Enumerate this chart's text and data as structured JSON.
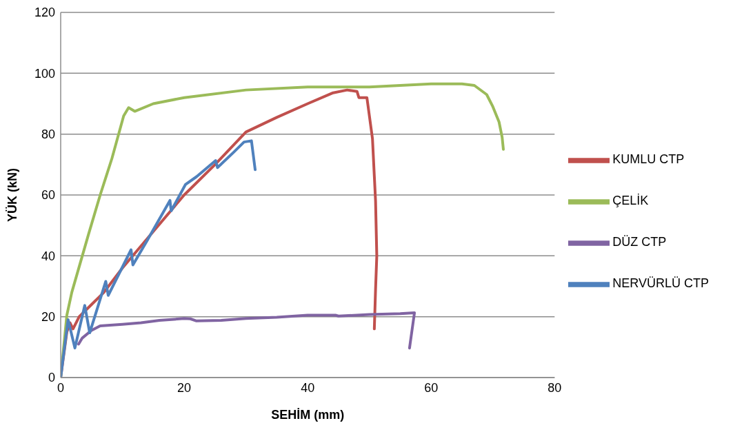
{
  "chart_data": {
    "type": "line",
    "xlabel": "SEHİM (mm)",
    "ylabel": "YÜK (kN)",
    "xlim": [
      0,
      80
    ],
    "xticks": [
      0,
      20,
      40,
      60,
      80
    ],
    "ylim": [
      0,
      120
    ],
    "yticks": [
      0,
      20,
      40,
      60,
      80,
      100,
      120
    ],
    "grid": "y",
    "legend": "right",
    "marker": "none",
    "line_style": "solid",
    "series": [
      {
        "name": "KUMLU CTP",
        "color": "#c0504d",
        "x": [
          0,
          1,
          1.5,
          2,
          3,
          5,
          7,
          10,
          15,
          20,
          25,
          30,
          35,
          40,
          44,
          46.4,
          48,
          48.3,
          49.6,
          50.5,
          51,
          51.2,
          51,
          50.8
        ],
        "values": [
          0,
          15,
          18,
          16,
          20,
          24,
          28,
          36,
          48,
          60,
          70,
          80.7,
          85.5,
          90,
          93.5,
          94.5,
          94,
          92,
          92,
          78.5,
          58,
          40,
          29,
          16
        ]
      },
      {
        "name": "ÇELİK",
        "color": "#9bbb59",
        "x": [
          0,
          1,
          1.8,
          4.5,
          6.4,
          8.3,
          10.2,
          11,
          12,
          15,
          20,
          30,
          40,
          50,
          55,
          60,
          65,
          67,
          69,
          70,
          71,
          71.5,
          71.7
        ],
        "values": [
          0,
          20.5,
          28,
          47,
          60,
          72,
          86,
          88.7,
          87.5,
          90,
          92,
          94.5,
          95.5,
          95.5,
          96,
          96.5,
          96.5,
          96,
          93,
          89,
          84,
          79,
          75
        ]
      },
      {
        "name": "DÜZ CTP",
        "color": "#8064a2",
        "x": [
          2.9,
          3.5,
          5,
          6.4,
          10,
          13,
          16,
          20,
          21,
          22,
          26,
          30,
          35,
          40,
          44.5,
          45,
          50,
          55,
          57.3,
          56.5
        ],
        "values": [
          11,
          13,
          15.5,
          17,
          17.5,
          18,
          18.8,
          19.4,
          19.3,
          18.6,
          18.8,
          19.4,
          19.8,
          20.5,
          20.5,
          20.2,
          20.7,
          21,
          21.3,
          9.7
        ]
      },
      {
        "name": "NERVÜRLÜ CTP",
        "color": "#4f81bd",
        "x": [
          0,
          1.2,
          2.3,
          3.9,
          4.7,
          7.3,
          7.7,
          11.4,
          11.7,
          14,
          17.7,
          17.9,
          20.2,
          22,
          25.1,
          25.4,
          28,
          29.7,
          30.9,
          31.5
        ],
        "values": [
          0,
          19,
          9.7,
          23.7,
          14.7,
          31.6,
          27,
          42,
          37,
          45,
          58.2,
          54.8,
          63.4,
          66,
          71.3,
          69,
          74,
          77.4,
          77.8,
          68.3
        ]
      }
    ]
  }
}
